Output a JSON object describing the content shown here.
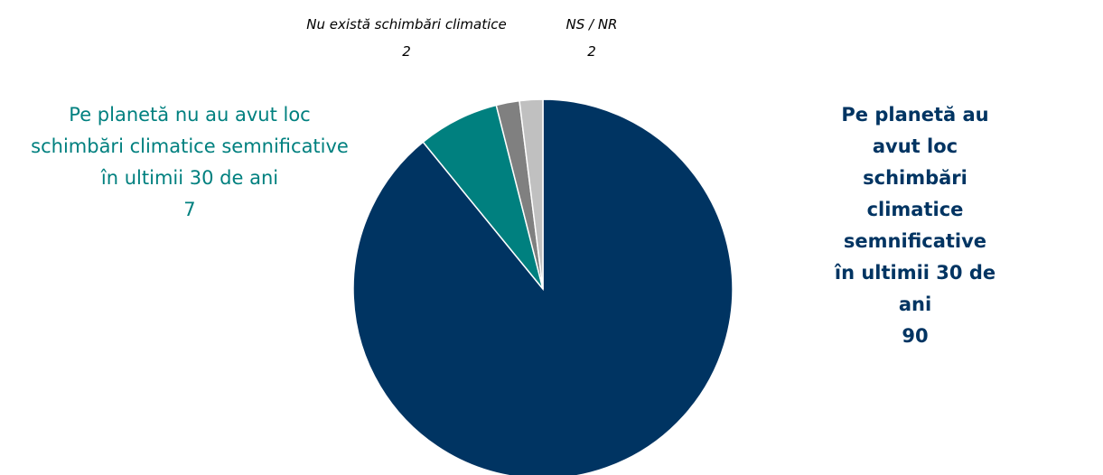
{
  "chart_data": {
    "type": "pie",
    "categories": [
      "Pe planetă au avut loc\nschimbări climatice semnificative\nîn ultimii 30 de ani",
      "Pe planetă nu au avut loc\nschimbări climatice semnificative\nîn ultimii 30 de ani",
      "Nu există schimbări climatice",
      "NS / NR"
    ],
    "values": [
      90,
      7,
      2,
      2
    ],
    "colors": [
      "#003462",
      "#00807f",
      "#808080",
      "#c0c0c0"
    ]
  }
}
